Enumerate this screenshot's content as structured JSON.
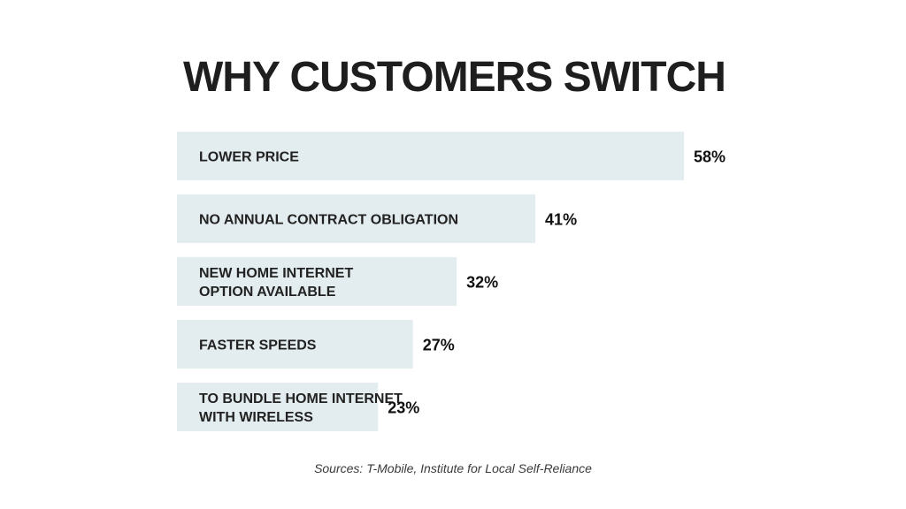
{
  "chart_data": {
    "type": "bar",
    "orientation": "horizontal",
    "title": "WHY CUSTOMERS SWITCH",
    "categories": [
      [
        "LOWER PRICE"
      ],
      [
        "NO ANNUAL CONTRACT OBLIGATION"
      ],
      [
        "NEW HOME INTERNET",
        "OPTION AVAILABLE"
      ],
      [
        "FASTER SPEEDS"
      ],
      [
        "TO BUNDLE HOME INTERNET",
        "WITH WIRELESS"
      ]
    ],
    "values": [
      58,
      41,
      32,
      27,
      23
    ],
    "value_labels": [
      "58%",
      "41%",
      "32%",
      "27%",
      "23%"
    ],
    "unit": "%",
    "bar_color": "#e3ecee",
    "grid": false,
    "legend": "none"
  },
  "footer": {
    "source": "Sources: T-Mobile, Institute for Local Self-Reliance"
  }
}
